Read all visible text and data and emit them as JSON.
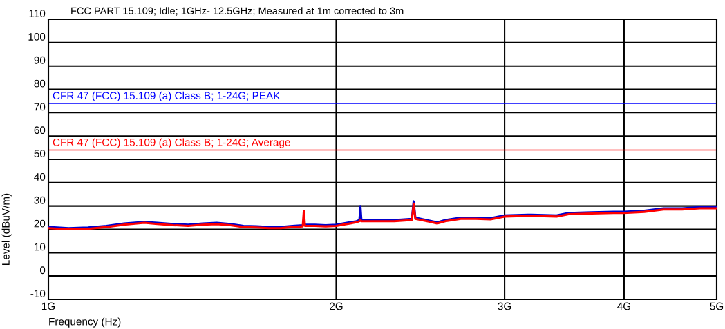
{
  "chart_data": {
    "type": "line",
    "title": "FCC PART 15.109; Idle; 1GHz- 12.5GHz; Measured at 1m corrected to 3m",
    "xlabel": "Frequency (Hz)",
    "ylabel": "Level (dBuV/m)",
    "log": "x",
    "grid": true,
    "legend": false,
    "xlim": [
      1,
      5
    ],
    "xticks": [
      {
        "value": 1,
        "label": "1G"
      },
      {
        "value": 2,
        "label": "2G"
      },
      {
        "value": 3,
        "label": "3G"
      },
      {
        "value": 4,
        "label": "4G"
      },
      {
        "value": 5,
        "label": "5G"
      }
    ],
    "ylim": [
      -10,
      110
    ],
    "yticks": [
      -10,
      0,
      10,
      20,
      30,
      40,
      50,
      60,
      70,
      80,
      90,
      100,
      110
    ],
    "x": [
      1,
      1.05,
      1.1,
      1.15,
      1.2,
      1.26,
      1.3,
      1.35,
      1.4,
      1.45,
      1.5,
      1.55,
      1.6,
      1.65,
      1.7,
      1.75,
      1.8,
      1.845,
      1.85,
      1.855,
      1.9,
      1.95,
      2,
      2.1,
      2.115,
      2.12,
      2.125,
      2.2,
      2.3,
      2.4,
      2.41,
      2.42,
      2.5,
      2.55,
      2.6,
      2.7,
      2.8,
      2.9,
      3,
      3.2,
      3.4,
      3.5,
      3.7,
      3.9,
      4,
      4.2,
      4.4,
      4.6,
      4.8,
      5
    ],
    "series": [
      {
        "color": "#0000cc",
        "values": [
          21,
          20.5,
          20.8,
          21.5,
          22.5,
          23.2,
          22.8,
          22.3,
          22,
          22.5,
          22.8,
          22.3,
          21.5,
          21.3,
          21,
          21,
          21.5,
          21.8,
          23,
          22,
          22,
          21.8,
          22,
          23.5,
          24,
          30,
          24,
          24,
          24,
          24.5,
          32,
          25,
          23.8,
          23,
          24,
          25,
          25,
          24.8,
          26,
          26.3,
          26,
          27,
          27.3,
          27.5,
          27.5,
          28,
          29,
          29,
          29.5,
          29.5
        ]
      },
      {
        "color": "#ff0000",
        "values": [
          20.5,
          20,
          20.2,
          21,
          22,
          22.8,
          22.3,
          21.8,
          21.5,
          22,
          22.2,
          21.8,
          21,
          20.8,
          20.5,
          20.5,
          21,
          21.3,
          28,
          21.5,
          21.5,
          21.3,
          21.5,
          23,
          23.5,
          24,
          23.5,
          23.5,
          23.5,
          24,
          31,
          24.5,
          23.3,
          22.5,
          23.5,
          24.5,
          24.5,
          24.3,
          25.5,
          25.8,
          25.5,
          26.5,
          26.8,
          27,
          27,
          27.5,
          28.5,
          28.5,
          29,
          29
        ]
      }
    ],
    "ref_lines": [
      {
        "axis": "y",
        "value": 74,
        "label": "CFR 47 (FCC) 15.109 (a) Class B; 1-24G; PEAK",
        "color": "#0000ff"
      },
      {
        "axis": "y",
        "value": 54,
        "label": "CFR 47 (FCC) 15.109 (a) Class B; 1-24G; Average",
        "color": "#ff0000"
      }
    ]
  }
}
